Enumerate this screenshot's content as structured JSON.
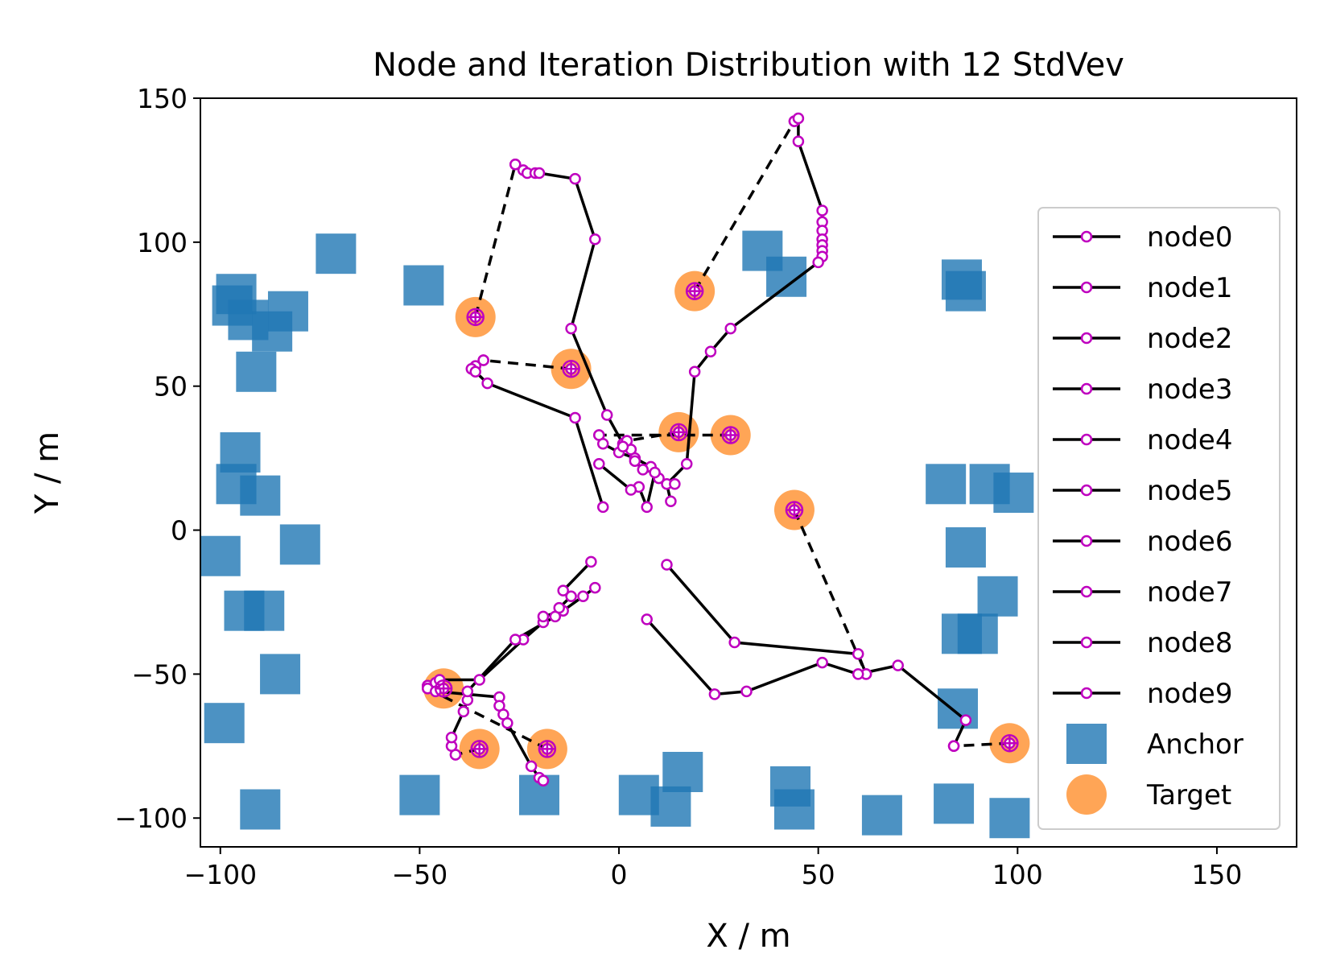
{
  "chart_data": {
    "type": "scatter",
    "title": "Node and Iteration Distribution with 12 StdVev",
    "xlabel": "X / m",
    "ylabel": "Y / m",
    "xlim": [
      -105,
      170
    ],
    "ylim": [
      -110,
      150
    ],
    "xticks": [
      -100,
      -50,
      0,
      50,
      100,
      150
    ],
    "yticks": [
      -100,
      -50,
      0,
      50,
      100,
      150
    ],
    "xtick_labels": [
      "−100",
      "−50",
      "0",
      "50",
      "100",
      "150"
    ],
    "ytick_labels": [
      "−100",
      "−50",
      "0",
      "50",
      "100",
      "150"
    ],
    "grid": false,
    "legend_position": "right",
    "colors": {
      "anchor": "#1f77b4",
      "target": "#ff7f0e",
      "node_line": "#000000",
      "node_marker": "#bf00bf"
    },
    "anchors": [
      [
        -71,
        96
      ],
      [
        -96,
        82
      ],
      [
        -97,
        78
      ],
      [
        -93,
        73
      ],
      [
        -83,
        76
      ],
      [
        -87,
        69
      ],
      [
        -91,
        55
      ],
      [
        -95,
        27
      ],
      [
        -96,
        16
      ],
      [
        -90,
        12
      ],
      [
        -100,
        -9
      ],
      [
        -80,
        -5
      ],
      [
        -94,
        -28
      ],
      [
        -89,
        -28
      ],
      [
        -85,
        -50
      ],
      [
        -99,
        -67
      ],
      [
        -90,
        -97
      ],
      [
        -49,
        85
      ],
      [
        -50,
        -92
      ],
      [
        -20,
        -92
      ],
      [
        5,
        -92
      ],
      [
        13,
        -96
      ],
      [
        16,
        -84
      ],
      [
        36,
        97
      ],
      [
        42,
        88
      ],
      [
        43,
        -89
      ],
      [
        44,
        -97
      ],
      [
        66,
        -99
      ],
      [
        86,
        87
      ],
      [
        87,
        83
      ],
      [
        82,
        16
      ],
      [
        93,
        16
      ],
      [
        99,
        13
      ],
      [
        87,
        -6
      ],
      [
        95,
        -23
      ],
      [
        86,
        -36
      ],
      [
        90,
        -36
      ],
      [
        85,
        -62
      ],
      [
        84,
        -95
      ],
      [
        98,
        -100
      ]
    ],
    "targets": [
      [
        -36,
        74
      ],
      [
        -12,
        56
      ],
      [
        15,
        34
      ],
      [
        28,
        33
      ],
      [
        19,
        83
      ],
      [
        44,
        7
      ],
      [
        98,
        -74
      ],
      [
        -44,
        -55
      ],
      [
        -35,
        -76
      ],
      [
        -18,
        -76
      ]
    ],
    "series": [
      {
        "name": "node0",
        "segments": [
          {
            "style": "dashed",
            "points": [
              [
                -36,
                74
              ],
              [
                -26,
                127
              ]
            ]
          },
          {
            "style": "solid",
            "points": [
              [
                -26,
                127
              ],
              [
                -24,
                125
              ],
              [
                -23,
                124
              ],
              [
                -21,
                124
              ],
              [
                -20,
                124
              ],
              [
                -11,
                122
              ],
              [
                -6,
                101
              ],
              [
                -12,
                70
              ],
              [
                -3,
                40
              ],
              [
                1,
                30
              ],
              [
                3,
                28
              ]
            ]
          }
        ]
      },
      {
        "name": "node1",
        "segments": [
          {
            "style": "dashed",
            "points": [
              [
                -12,
                56
              ],
              [
                -34,
                59
              ]
            ]
          },
          {
            "style": "solid",
            "points": [
              [
                -34,
                59
              ],
              [
                -36,
                57
              ],
              [
                -37,
                56
              ],
              [
                -36,
                55
              ],
              [
                -33,
                51
              ],
              [
                -11,
                39
              ],
              [
                -4,
                8
              ]
            ]
          }
        ]
      },
      {
        "name": "node2",
        "segments": [
          {
            "style": "dashed",
            "points": [
              [
                19,
                83
              ],
              [
                44,
                142
              ]
            ]
          },
          {
            "style": "solid",
            "points": [
              [
                44,
                142
              ],
              [
                45,
                143
              ],
              [
                45,
                135
              ],
              [
                51,
                111
              ],
              [
                51,
                107
              ],
              [
                51,
                104
              ],
              [
                51,
                101
              ],
              [
                51,
                99
              ],
              [
                51,
                97
              ],
              [
                51,
                95
              ],
              [
                50,
                93
              ],
              [
                28,
                70
              ],
              [
                23,
                62
              ],
              [
                19,
                55
              ],
              [
                17,
                23
              ],
              [
                12,
                16
              ],
              [
                13,
                10
              ]
            ]
          }
        ]
      },
      {
        "name": "node3",
        "segments": [
          {
            "style": "dashed",
            "points": [
              [
                28,
                33
              ],
              [
                -5,
                33
              ]
            ]
          },
          {
            "style": "solid",
            "points": [
              [
                -5,
                33
              ],
              [
                -4,
                30
              ],
              [
                0,
                27
              ],
              [
                4,
                25
              ],
              [
                8,
                22
              ],
              [
                10,
                18
              ],
              [
                14,
                16
              ]
            ]
          }
        ]
      },
      {
        "name": "node4",
        "segments": [
          {
            "style": "dashed",
            "points": [
              [
                15,
                34
              ],
              [
                2,
                31
              ]
            ]
          },
          {
            "style": "solid",
            "points": [
              [
                2,
                31
              ],
              [
                1,
                29
              ],
              [
                4,
                24
              ],
              [
                6,
                21
              ],
              [
                9,
                20
              ],
              [
                7,
                8
              ],
              [
                5,
                15
              ],
              [
                3,
                14
              ],
              [
                -5,
                23
              ]
            ]
          }
        ]
      },
      {
        "name": "node5",
        "segments": [
          {
            "style": "dashed",
            "points": [
              [
                44,
                7
              ],
              [
                62,
                -50
              ]
            ]
          },
          {
            "style": "solid",
            "points": [
              [
                62,
                -50
              ],
              [
                60,
                -43
              ],
              [
                29,
                -39
              ],
              [
                12,
                -12
              ]
            ]
          }
        ]
      },
      {
        "name": "node6",
        "segments": [
          {
            "style": "dashed",
            "points": [
              [
                98,
                -74
              ],
              [
                84,
                -75
              ]
            ]
          },
          {
            "style": "solid",
            "points": [
              [
                84,
                -75
              ],
              [
                87,
                -66
              ],
              [
                70,
                -47
              ],
              [
                60,
                -50
              ],
              [
                51,
                -46
              ],
              [
                32,
                -56
              ],
              [
                24,
                -57
              ],
              [
                7,
                -31
              ]
            ]
          }
        ]
      },
      {
        "name": "node7",
        "segments": [
          {
            "style": "dashed",
            "points": [
              [
                -44,
                -55
              ],
              [
                -48,
                -54
              ]
            ]
          },
          {
            "style": "solid",
            "points": [
              [
                -48,
                -54
              ],
              [
                -46,
                -53
              ],
              [
                -45,
                -52
              ],
              [
                -35,
                -52
              ],
              [
                -24,
                -38
              ],
              [
                -19,
                -32
              ],
              [
                -19,
                -30
              ],
              [
                -14,
                -28
              ],
              [
                -9,
                -23
              ],
              [
                -6,
                -20
              ]
            ]
          }
        ]
      },
      {
        "name": "node8",
        "segments": [
          {
            "style": "dashed",
            "points": [
              [
                -35,
                -76
              ],
              [
                -41,
                -78
              ]
            ]
          },
          {
            "style": "solid",
            "points": [
              [
                -41,
                -78
              ],
              [
                -42,
                -75
              ],
              [
                -42,
                -72
              ],
              [
                -39,
                -63
              ],
              [
                -38,
                -59
              ],
              [
                -38,
                -56
              ],
              [
                -26,
                -38
              ],
              [
                -16,
                -30
              ],
              [
                -15,
                -27
              ],
              [
                -12,
                -23
              ],
              [
                -14,
                -21
              ],
              [
                -7,
                -11
              ]
            ]
          }
        ]
      },
      {
        "name": "node9",
        "segments": [
          {
            "style": "dashed",
            "points": [
              [
                -18,
                -76
              ],
              [
                -48,
                -55
              ]
            ]
          },
          {
            "style": "solid",
            "points": [
              [
                -48,
                -55
              ],
              [
                -46,
                -56
              ],
              [
                -30,
                -58
              ],
              [
                -30,
                -61
              ],
              [
                -29,
                -64
              ],
              [
                -28,
                -67
              ],
              [
                -22,
                -82
              ],
              [
                -20,
                -86
              ],
              [
                -19,
                -87
              ]
            ]
          }
        ]
      }
    ],
    "legend": [
      "node0",
      "node1",
      "node2",
      "node3",
      "node4",
      "node5",
      "node6",
      "node7",
      "node8",
      "node9",
      "Anchor",
      "Target"
    ]
  }
}
